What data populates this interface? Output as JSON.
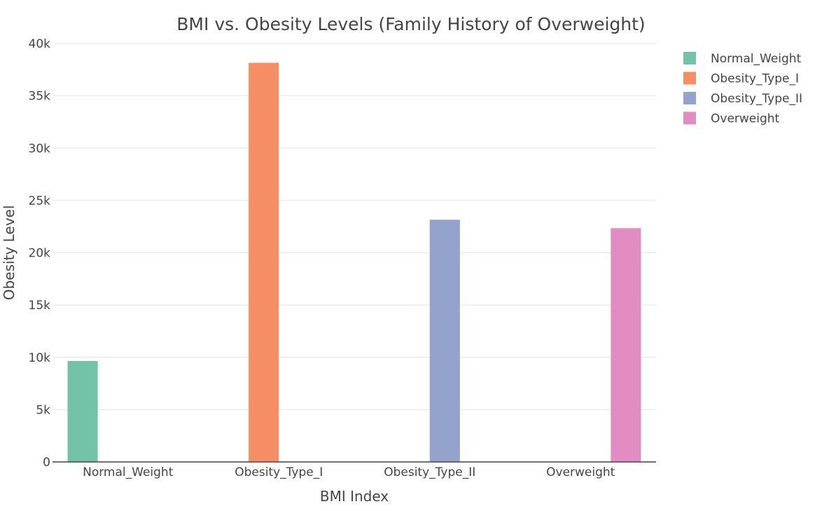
{
  "chart_data": {
    "type": "bar",
    "title": "BMI vs. Obesity Levels (Family History of Overweight)",
    "xlabel": "BMI Index",
    "ylabel": "Obesity Level",
    "categories": [
      "Normal_Weight",
      "Obesity_Type_I",
      "Obesity_Type_II",
      "Overweight"
    ],
    "series": [
      {
        "name": "Normal_Weight",
        "color": "#72c3a7",
        "values": [
          9650,
          0,
          0,
          0
        ]
      },
      {
        "name": "Obesity_Type_I",
        "color": "#f58d65",
        "values": [
          0,
          38150,
          0,
          0
        ]
      },
      {
        "name": "Obesity_Type_II",
        "color": "#94a3cb",
        "values": [
          0,
          0,
          23150,
          0
        ]
      },
      {
        "name": "Overweight",
        "color": "#e38cc4",
        "values": [
          0,
          0,
          0,
          22350
        ]
      }
    ],
    "ylim": [
      0,
      40000
    ],
    "yticks": [
      0,
      5000,
      10000,
      15000,
      20000,
      25000,
      30000,
      35000,
      40000
    ],
    "ytick_labels": [
      "0",
      "5k",
      "10k",
      "15k",
      "20k",
      "25k",
      "30k",
      "35k",
      "40k"
    ],
    "grid": true,
    "legend_position": "top-right"
  }
}
